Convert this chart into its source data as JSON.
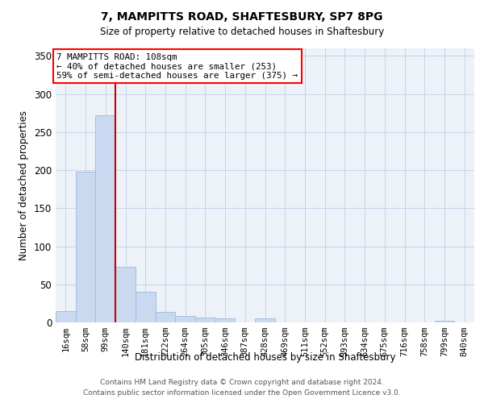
{
  "title1": "7, MAMPITTS ROAD, SHAFTESBURY, SP7 8PG",
  "title2": "Size of property relative to detached houses in Shaftesbury",
  "xlabel": "Distribution of detached houses by size in Shaftesbury",
  "ylabel": "Number of detached properties",
  "categories": [
    "16sqm",
    "58sqm",
    "99sqm",
    "140sqm",
    "181sqm",
    "222sqm",
    "264sqm",
    "305sqm",
    "346sqm",
    "387sqm",
    "428sqm",
    "469sqm",
    "511sqm",
    "552sqm",
    "593sqm",
    "634sqm",
    "675sqm",
    "716sqm",
    "758sqm",
    "799sqm",
    "840sqm"
  ],
  "values": [
    15,
    198,
    272,
    73,
    40,
    14,
    9,
    6,
    5,
    0,
    5,
    0,
    0,
    0,
    0,
    0,
    0,
    0,
    0,
    2,
    0
  ],
  "bar_color": "#c9d9f0",
  "bar_edge_color": "#a0b8d8",
  "redline_color": "#cc0000",
  "redline_index": 2,
  "ylim": [
    0,
    360
  ],
  "yticks": [
    0,
    50,
    100,
    150,
    200,
    250,
    300,
    350
  ],
  "grid_color": "#c8d4e8",
  "bg_color": "#edf1f8",
  "annotation_lines": [
    "7 MAMPITTS ROAD: 108sqm",
    "← 40% of detached houses are smaller (253)",
    "59% of semi-detached houses are larger (375) →"
  ],
  "footer1": "Contains HM Land Registry data © Crown copyright and database right 2024.",
  "footer2": "Contains public sector information licensed under the Open Government Licence v3.0."
}
